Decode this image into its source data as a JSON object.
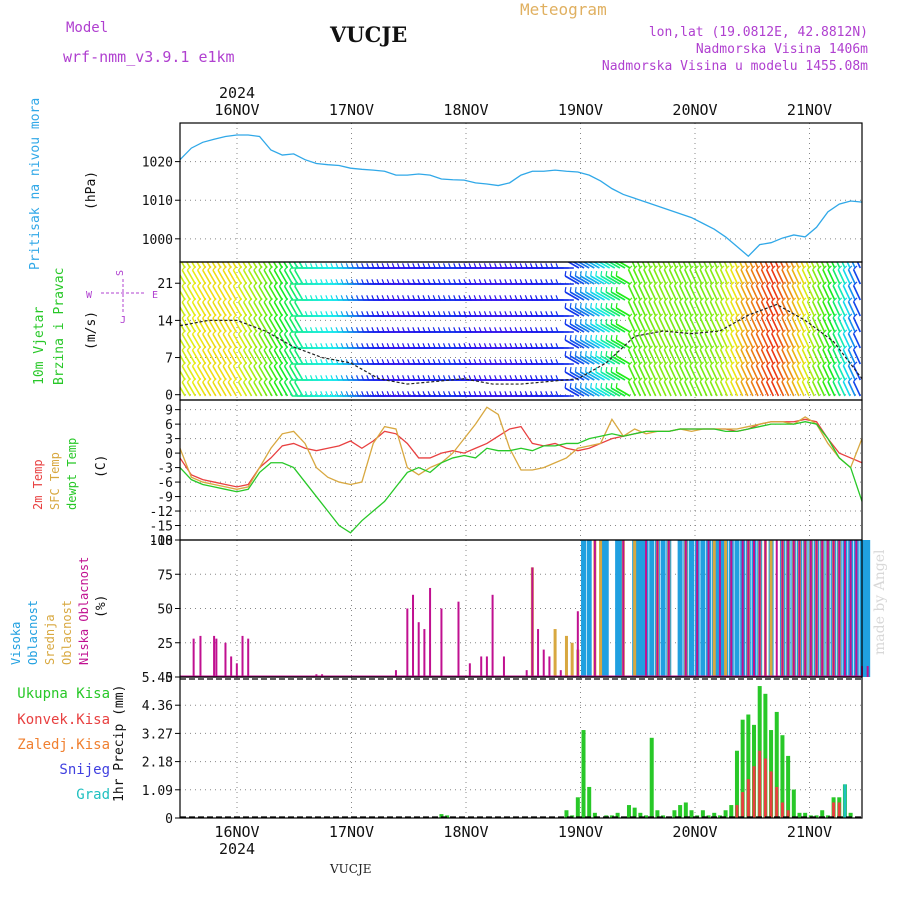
{
  "header": {
    "model_label": "Model",
    "model_value": "wrf-nmm_v3.9.1 e1km",
    "station": "VUCJE",
    "subtitle": "Meteogram",
    "lonlat": "lon,lat (19.0812E, 42.8812N)",
    "altitude": "Nadmorska Visina 1406m",
    "model_altitude": "Nadmorska Visina u modelu 1455.08m",
    "watermark": "made by Angel",
    "footer_station": "VUCJE",
    "top_year": "2024",
    "bottom_year": "2024"
  },
  "colors": {
    "pressure": "#30a8e8",
    "temp2m": "#e84040",
    "sfc": "#d8a840",
    "dewpt": "#28c828",
    "high_cloud": "#20a0e0",
    "mid_cloud": "#d8a840",
    "low_cloud": "#c01090",
    "total_precip": "#28c828",
    "conv_precip": "#e84040",
    "frozen": "#f08030",
    "snow": "#4040e0",
    "hail": "#20c0c0",
    "wind_speed": "#e03030"
  },
  "chart_data": [
    {
      "type": "line",
      "panel": "pressure",
      "ylabel_left": "Pritisak na nivou mora",
      "ylabel": "(hPa)",
      "ylim": [
        994,
        1030
      ],
      "yticks": [
        1000,
        1010,
        1020
      ],
      "x_categories": [
        "16NOV",
        "17NOV",
        "18NOV",
        "19NOV",
        "20NOV",
        "21NOV"
      ],
      "x": [
        0,
        0.1,
        0.2,
        0.3,
        0.4,
        0.5,
        0.6,
        0.7,
        0.8,
        0.9,
        1.0,
        1.1,
        1.2,
        1.3,
        1.4,
        1.5,
        1.6,
        1.7,
        1.8,
        1.9,
        2.0,
        2.1,
        2.2,
        2.3,
        2.4,
        2.5,
        2.6,
        2.7,
        2.8,
        2.9,
        3.0,
        3.1,
        3.2,
        3.3,
        3.4,
        3.5,
        3.6,
        3.7,
        3.8,
        3.9,
        4.0,
        4.1,
        4.2,
        4.3,
        4.4,
        4.5,
        4.6,
        4.7,
        4.8,
        4.9,
        5.0,
        5.1,
        5.2,
        5.3,
        5.4,
        5.5,
        5.6,
        5.7,
        5.8,
        5.9,
        6.0
      ],
      "values": [
        1020.5,
        1023.5,
        1025,
        1025.8,
        1026.5,
        1026.9,
        1026.9,
        1026.5,
        1023,
        1021.7,
        1022,
        1020.5,
        1019.5,
        1019.2,
        1019,
        1018.3,
        1018,
        1017.8,
        1017.5,
        1016.5,
        1016.5,
        1016.8,
        1016.5,
        1015.5,
        1015.3,
        1015.2,
        1014.5,
        1014.2,
        1013.8,
        1014.5,
        1016.5,
        1017.5,
        1017.5,
        1017.8,
        1017.5,
        1017.3,
        1016.5,
        1015,
        1013,
        1011.5,
        1010.5,
        1009.5,
        1008.5,
        1007.5,
        1006.5,
        1005.5,
        1004,
        1002.5,
        1000.5,
        998,
        995.5,
        998.5,
        999,
        1000.2,
        1001,
        1000.5,
        1003,
        1007,
        1009,
        1009.8,
        1009.5
      ]
    },
    {
      "type": "line",
      "panel": "wind",
      "ylabel_left": "10m Vjetar Brzina i Pravac",
      "ylabel": "(m/s)",
      "compass_labels": [
        "S",
        "W",
        "E",
        "J"
      ],
      "ylim": [
        -1,
        25
      ],
      "yticks": [
        0,
        7,
        14,
        21
      ],
      "series": [
        {
          "name": "wind_speed",
          "x": [
            0,
            0.25,
            0.5,
            0.75,
            1.0,
            1.25,
            1.5,
            1.75,
            2.0,
            2.25,
            2.5,
            2.75,
            3.0,
            3.25,
            3.5,
            3.75,
            4.0,
            4.25,
            4.5,
            4.75,
            5.0,
            5.25,
            5.5,
            5.75,
            6.0
          ],
          "values": [
            13,
            14,
            14,
            12,
            9,
            7,
            6,
            3,
            2,
            2.5,
            3,
            2,
            2,
            2.5,
            3,
            6,
            11,
            12,
            11.5,
            12,
            15,
            17,
            14,
            10,
            3
          ]
        }
      ]
    },
    {
      "type": "line",
      "panel": "temperature",
      "ylabel_left": "2m Temp / SFC Temp / dewpt Temp",
      "ylabel": "(C)",
      "ylim": [
        -18,
        11
      ],
      "yticks": [
        -18,
        -15,
        -12,
        -9,
        -6,
        -3,
        0,
        3,
        6,
        9
      ],
      "x": [
        0,
        0.1,
        0.2,
        0.3,
        0.4,
        0.5,
        0.6,
        0.7,
        0.8,
        0.9,
        1.0,
        1.1,
        1.2,
        1.3,
        1.4,
        1.5,
        1.6,
        1.7,
        1.8,
        1.9,
        2.0,
        2.1,
        2.2,
        2.3,
        2.4,
        2.5,
        2.6,
        2.7,
        2.8,
        2.9,
        3.0,
        3.1,
        3.2,
        3.3,
        3.4,
        3.5,
        3.6,
        3.7,
        3.8,
        3.9,
        4.0,
        4.1,
        4.2,
        4.3,
        4.4,
        4.5,
        4.6,
        4.7,
        4.8,
        4.9,
        5.0,
        5.1,
        5.2,
        5.3,
        5.4,
        5.5,
        5.6,
        5.7,
        5.8,
        5.9,
        6.0
      ],
      "series": [
        {
          "name": "2m Temp",
          "values": [
            -1,
            -4.5,
            -5.5,
            -6,
            -6.5,
            -7,
            -6.5,
            -3,
            -1,
            1.5,
            2,
            1,
            0.5,
            1,
            1.5,
            2.5,
            1,
            2.5,
            4.5,
            4,
            2,
            -1,
            -1,
            0,
            0.5,
            0,
            1,
            2,
            3.5,
            5,
            5.5,
            2,
            1.5,
            2,
            1,
            0.5,
            1,
            2,
            3,
            3.5,
            4,
            4.5,
            4.5,
            4.5,
            5,
            5,
            5,
            5,
            5,
            4.5,
            5,
            6,
            6.5,
            6.5,
            6.5,
            7,
            6.5,
            3,
            0,
            -1,
            -2
          ]
        },
        {
          "name": "SFC Temp",
          "values": [
            1,
            -5,
            -6,
            -6.5,
            -7,
            -7.5,
            -7,
            -3,
            1,
            4,
            4.5,
            2,
            -3,
            -5,
            -6,
            -6.5,
            -6,
            2,
            5.5,
            5,
            -3,
            -4.5,
            -3,
            -2,
            0,
            3,
            6,
            9.5,
            8,
            1,
            -3.5,
            -3.5,
            -3,
            -2,
            -1,
            1,
            1.5,
            2,
            7,
            3.5,
            5,
            4,
            4.5,
            4.5,
            5,
            4.5,
            5,
            5,
            5,
            5,
            5.5,
            6,
            6.5,
            6.5,
            6,
            7.5,
            6,
            2,
            -1,
            -3,
            3
          ]
        },
        {
          "name": "dewpt Temp",
          "values": [
            -3,
            -5.5,
            -6.5,
            -7,
            -7.5,
            -8,
            -7.5,
            -4,
            -2,
            -2,
            -3,
            -6,
            -9,
            -12,
            -15,
            -16.5,
            -14,
            -12,
            -10,
            -7,
            -4,
            -3,
            -4,
            -2,
            -1,
            -0.5,
            -1,
            1,
            0.5,
            0.5,
            1,
            0.5,
            1.5,
            1.5,
            2,
            2,
            3,
            3.5,
            4,
            3.5,
            4,
            4.5,
            4.5,
            4.5,
            5,
            5,
            5,
            5,
            4.5,
            4.5,
            5,
            5.5,
            6,
            6,
            6,
            6.5,
            6,
            3,
            -1,
            -3,
            -10
          ]
        }
      ]
    },
    {
      "type": "bar",
      "panel": "clouds",
      "ylabel_left": "Visoka Oblacnost / Srednja Oblacnost / Niska Oblacnost",
      "ylabel": "(%)",
      "ylim": [
        0,
        100
      ],
      "yticks": [
        0,
        25,
        50,
        75,
        100
      ],
      "series": [
        {
          "name": "Visoka Oblacnost",
          "x": [
            3.55,
            3.6,
            3.72,
            3.75,
            3.85,
            3.88,
            4.0,
            4.02,
            4.05,
            4.08,
            4.1,
            4.15,
            4.2,
            4.25,
            4.3,
            4.4,
            4.45,
            4.5,
            4.55,
            4.6,
            4.65,
            4.7,
            4.72,
            4.75,
            4.78,
            4.8,
            4.85,
            4.9,
            4.95,
            5.0,
            5.05,
            5.1,
            5.2,
            5.3,
            5.35,
            5.4,
            5.45,
            5.5,
            5.55,
            5.6,
            5.65,
            5.7,
            5.75,
            5.8,
            5.85,
            5.9,
            5.95,
            6.0,
            6.02,
            6.05
          ],
          "values": [
            100,
            100,
            100,
            100,
            100,
            100,
            100,
            100,
            100,
            100,
            100,
            100,
            100,
            100,
            100,
            100,
            100,
            100,
            100,
            100,
            100,
            100,
            100,
            100,
            100,
            100,
            100,
            100,
            100,
            100,
            100,
            100,
            100,
            100,
            100,
            100,
            100,
            100,
            100,
            100,
            100,
            100,
            100,
            100,
            100,
            100,
            100,
            100,
            100,
            100
          ]
        },
        {
          "name": "Srednja Oblacnost",
          "x": [
            3.1,
            3.3,
            3.4,
            3.45,
            3.5,
            3.65,
            3.7,
            3.9,
            4.0,
            4.2,
            4.3,
            4.45,
            4.7,
            4.8,
            5.0,
            5.1,
            5.15,
            5.2,
            5.3,
            5.35,
            5.4,
            5.45,
            5.5,
            5.55,
            5.6,
            5.65,
            5.7,
            5.75,
            5.8
          ],
          "values": [
            80,
            35,
            30,
            25,
            20,
            100,
            100,
            100,
            100,
            100,
            100,
            100,
            100,
            100,
            100,
            100,
            100,
            100,
            100,
            100,
            100,
            100,
            100,
            100,
            100,
            100,
            100,
            100,
            100
          ]
        },
        {
          "name": "Niska Oblacnost",
          "x": [
            0.12,
            0.18,
            0.3,
            0.32,
            0.4,
            0.45,
            0.5,
            0.55,
            0.6,
            1.2,
            1.25,
            1.9,
            2.0,
            2.05,
            2.1,
            2.15,
            2.2,
            2.3,
            2.45,
            2.55,
            2.65,
            2.7,
            2.75,
            2.85,
            3.05,
            3.1,
            3.15,
            3.2,
            3.25,
            3.35,
            3.5,
            3.65,
            3.9,
            4.1,
            4.2,
            4.3,
            4.45,
            4.55,
            4.65,
            4.75,
            4.85,
            4.95,
            5.0,
            5.05,
            5.1,
            5.15,
            5.25,
            5.3,
            5.35,
            5.4,
            5.45,
            5.5,
            5.55,
            5.6,
            5.65,
            5.7,
            5.75,
            5.8,
            5.85,
            5.9,
            5.95,
            6.0,
            6.05
          ],
          "values": [
            28,
            30,
            30,
            28,
            25,
            15,
            10,
            30,
            28,
            2,
            2,
            5,
            50,
            60,
            40,
            35,
            65,
            50,
            55,
            10,
            15,
            15,
            60,
            15,
            5,
            80,
            35,
            20,
            15,
            5,
            48,
            100,
            100,
            100,
            100,
            100,
            100,
            100,
            100,
            100,
            100,
            100,
            100,
            100,
            100,
            100,
            100,
            100,
            100,
            100,
            100,
            100,
            100,
            100,
            100,
            100,
            100,
            100,
            100,
            100,
            100,
            8,
            8
          ]
        }
      ]
    },
    {
      "type": "bar",
      "panel": "precipitation",
      "ylabel_left": "Ukupna Kisa / Konvek.Kisa / Zaledj.Kisa / Snijeg / Grad",
      "ylabel": "1hr Precip (mm)",
      "ylim": [
        0,
        5.45
      ],
      "yticks": [
        0,
        1.09,
        2.18,
        3.27,
        4.36,
        5.45
      ],
      "x_categories": [
        "16NOV",
        "17NOV",
        "18NOV",
        "19NOV",
        "20NOV",
        "21NOV"
      ],
      "series": [
        {
          "name": "Ukupna Kisa",
          "x": [
            2.3,
            2.35,
            3.4,
            3.45,
            3.5,
            3.55,
            3.6,
            3.65,
            3.75,
            3.8,
            3.85,
            3.95,
            4.0,
            4.05,
            4.1,
            4.15,
            4.2,
            4.25,
            4.35,
            4.4,
            4.45,
            4.5,
            4.55,
            4.6,
            4.65,
            4.7,
            4.75,
            4.8,
            4.85,
            4.9,
            4.95,
            5.0,
            5.05,
            5.1,
            5.15,
            5.2,
            5.25,
            5.3,
            5.35,
            5.4,
            5.45,
            5.5,
            5.55,
            5.6,
            5.65,
            5.7,
            5.75,
            5.8,
            5.85,
            5.9
          ],
          "values": [
            0.15,
            0.1,
            0.3,
            0.1,
            0.8,
            3.4,
            1.2,
            0.2,
            0.1,
            0.1,
            0.2,
            0.5,
            0.4,
            0.2,
            0.1,
            3.1,
            0.3,
            0.1,
            0.3,
            0.5,
            0.6,
            0.3,
            0.1,
            0.3,
            0.1,
            0.2,
            0.1,
            0.3,
            0.5,
            2.6,
            3.8,
            4.0,
            3.6,
            5.1,
            4.8,
            3.4,
            4.1,
            3.2,
            2.4,
            1.1,
            0.2,
            0.2,
            0.1,
            0.1,
            0.3,
            0.1,
            0.8,
            0.8,
            1.3,
            0.2
          ]
        },
        {
          "name": "Konvek.Kisa",
          "x": [
            4.9,
            4.95,
            5.0,
            5.05,
            5.1,
            5.15,
            5.2,
            5.25,
            5.3,
            5.35,
            5.75,
            5.8,
            5.85
          ],
          "values": [
            0.5,
            1.0,
            1.5,
            2.0,
            2.6,
            2.3,
            1.8,
            1.2,
            0.6,
            0.3,
            0.6,
            0.6,
            0.5
          ]
        },
        {
          "name": "Zaledj.Kisa",
          "x": [],
          "values": []
        },
        {
          "name": "Snijeg",
          "x": [],
          "values": []
        },
        {
          "name": "Grad",
          "x": [
            5.85
          ],
          "values": [
            1.3
          ]
        }
      ]
    }
  ]
}
